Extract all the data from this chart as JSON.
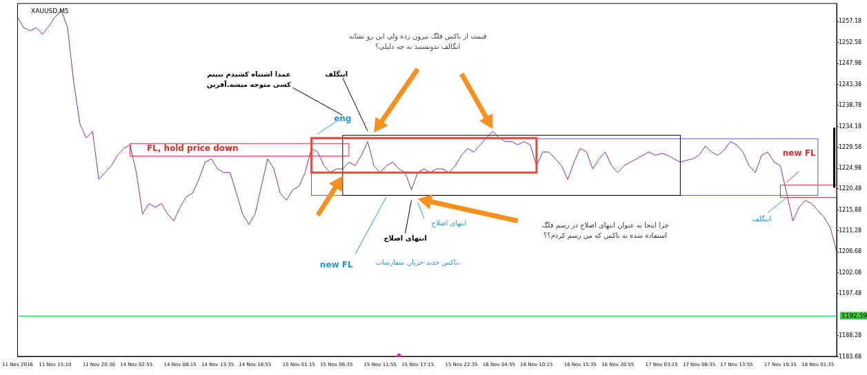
{
  "chart_data": {
    "type": "line",
    "title": "XAUUSD.M5",
    "categories": [
      "11 Nov 2016",
      null,
      null,
      null,
      null,
      null,
      "11 Nov 15:10",
      null,
      null,
      null,
      null,
      null,
      null,
      "11 Nov 20:30",
      null,
      null,
      null,
      null,
      null,
      "14 Nov 02:55",
      null,
      null,
      null,
      null,
      null,
      null,
      "14 Nov 08:15",
      null,
      null,
      null,
      null,
      null,
      "14 Nov 13:35",
      null,
      null,
      null,
      null,
      null,
      "14 Nov 18:55",
      null,
      null,
      null,
      null,
      null,
      null,
      "15 Nov 01:15",
      null,
      null,
      null,
      null,
      null,
      "15 Nov 06:35",
      null,
      null,
      null,
      null,
      null,
      null,
      "15 Nov 11:55",
      null,
      null,
      null,
      null,
      null,
      "15 Nov 17:15",
      null,
      null,
      null,
      null,
      null,
      null,
      "15 Nov 22:35",
      null,
      null,
      null,
      null,
      null,
      "16 Nov 04:55",
      null,
      null,
      null,
      null,
      null,
      "16 Nov 10:15",
      null,
      null,
      null,
      null,
      null,
      null,
      "16 Nov 15:35",
      null,
      null,
      null,
      null,
      null,
      "16 Nov 20:55",
      null,
      null,
      null,
      null,
      null,
      null,
      "17 Nov 03:15",
      null,
      null,
      null,
      null,
      null,
      "17 Nov 08:35",
      null,
      null,
      null,
      null,
      null,
      "17 Nov 13:55",
      null,
      null,
      null,
      null,
      null,
      null,
      "17 Nov 19:15",
      null,
      null,
      null,
      null,
      null,
      "18 Nov 01:35",
      null,
      null,
      null
    ],
    "values": [
      1258.1,
      1255.8,
      1255.1,
      1255.8,
      1254.3,
      1256.1,
      1258.1,
      1259.6,
      1255.8,
      1243.7,
      1234.6,
      1231.6,
      1233.1,
      1222.5,
      1224.0,
      1225.5,
      1227.8,
      1229.3,
      1230.1,
      1224.0,
      1214.9,
      1217.2,
      1216.4,
      1217.2,
      1214.9,
      1213.4,
      1216.4,
      1218.7,
      1219.5,
      1222.5,
      1226.3,
      1227.0,
      1224.8,
      1224.0,
      1224.0,
      1219.5,
      1214.9,
      1212.6,
      1214.9,
      1221.0,
      1227.0,
      1224.8,
      1219.5,
      1217.9,
      1220.2,
      1221.0,
      1224.0,
      1229.3,
      1228.5,
      1225.5,
      1224.0,
      1224.8,
      1224.8,
      1226.3,
      1225.5,
      1227.8,
      1230.8,
      1225.5,
      1224.0,
      1225.5,
      1226.3,
      1224.8,
      1224.0,
      1220.2,
      1224.0,
      1224.8,
      1224.0,
      1224.8,
      1224.8,
      1224.0,
      1225.5,
      1227.8,
      1229.3,
      1228.5,
      1230.1,
      1231.6,
      1233.1,
      1231.6,
      1230.8,
      1230.8,
      1230.1,
      1230.8,
      1230.1,
      1225.5,
      1228.5,
      1228.5,
      1227.0,
      1225.5,
      1222.5,
      1226.3,
      1229.3,
      1228.5,
      1224.8,
      1227.0,
      1228.5,
      1225.5,
      1224.0,
      1225.5,
      1226.3,
      1227.0,
      1227.8,
      1228.5,
      1227.8,
      1228.2,
      1227.8,
      1227.0,
      1226.3,
      1226.7,
      1227.0,
      1227.8,
      1229.8,
      1228.5,
      1227.8,
      1228.9,
      1230.8,
      1230.1,
      1228.5,
      1225.5,
      1224.0,
      1227.8,
      1228.5,
      1226.3,
      1225.5,
      1219.5,
      1213.4,
      1216.4,
      1217.9,
      1217.2,
      1215.7,
      1214.2,
      1211.9,
      1206.6
    ],
    "color": "#7a2fa0",
    "marker": "none",
    "ylim": [
      1183.68,
      1261.1
    ],
    "yticks": [
      1183.68,
      1188.28,
      1197.48,
      1202.08,
      1206.68,
      1211.28,
      1215.88,
      1220.48,
      1224.98,
      1229.58,
      1234.18,
      1238.78,
      1243.38,
      1247.98,
      1252.58,
      1257.18
    ],
    "grid": false,
    "ref_lines": [
      {
        "axis": "y",
        "value": 1192.59,
        "label": "1192.59",
        "color": "#3cc83c"
      }
    ],
    "annotations": [
      "قیمت از باکس فلگ بیرون زده ولی این رو نشانه\nانگالف ندونستید به چه دلیلی؟",
      "عمدا اشتباه کشیدم ببینم\nکسی متوجه میشه.آفرین",
      "اینگلف",
      "eng",
      "FL, hold price down",
      "انتهای اصلاح",
      "انتهای اصلاح",
      "new FL",
      "باکس جدید جریان سفارشات،",
      "چرا اینجا به عنوان انتهای اصلاح در رسم فلگ\nاستفاده شده نه باکس که من رسم کردم؟؟",
      "new FL",
      "اینگلف"
    ]
  }
}
